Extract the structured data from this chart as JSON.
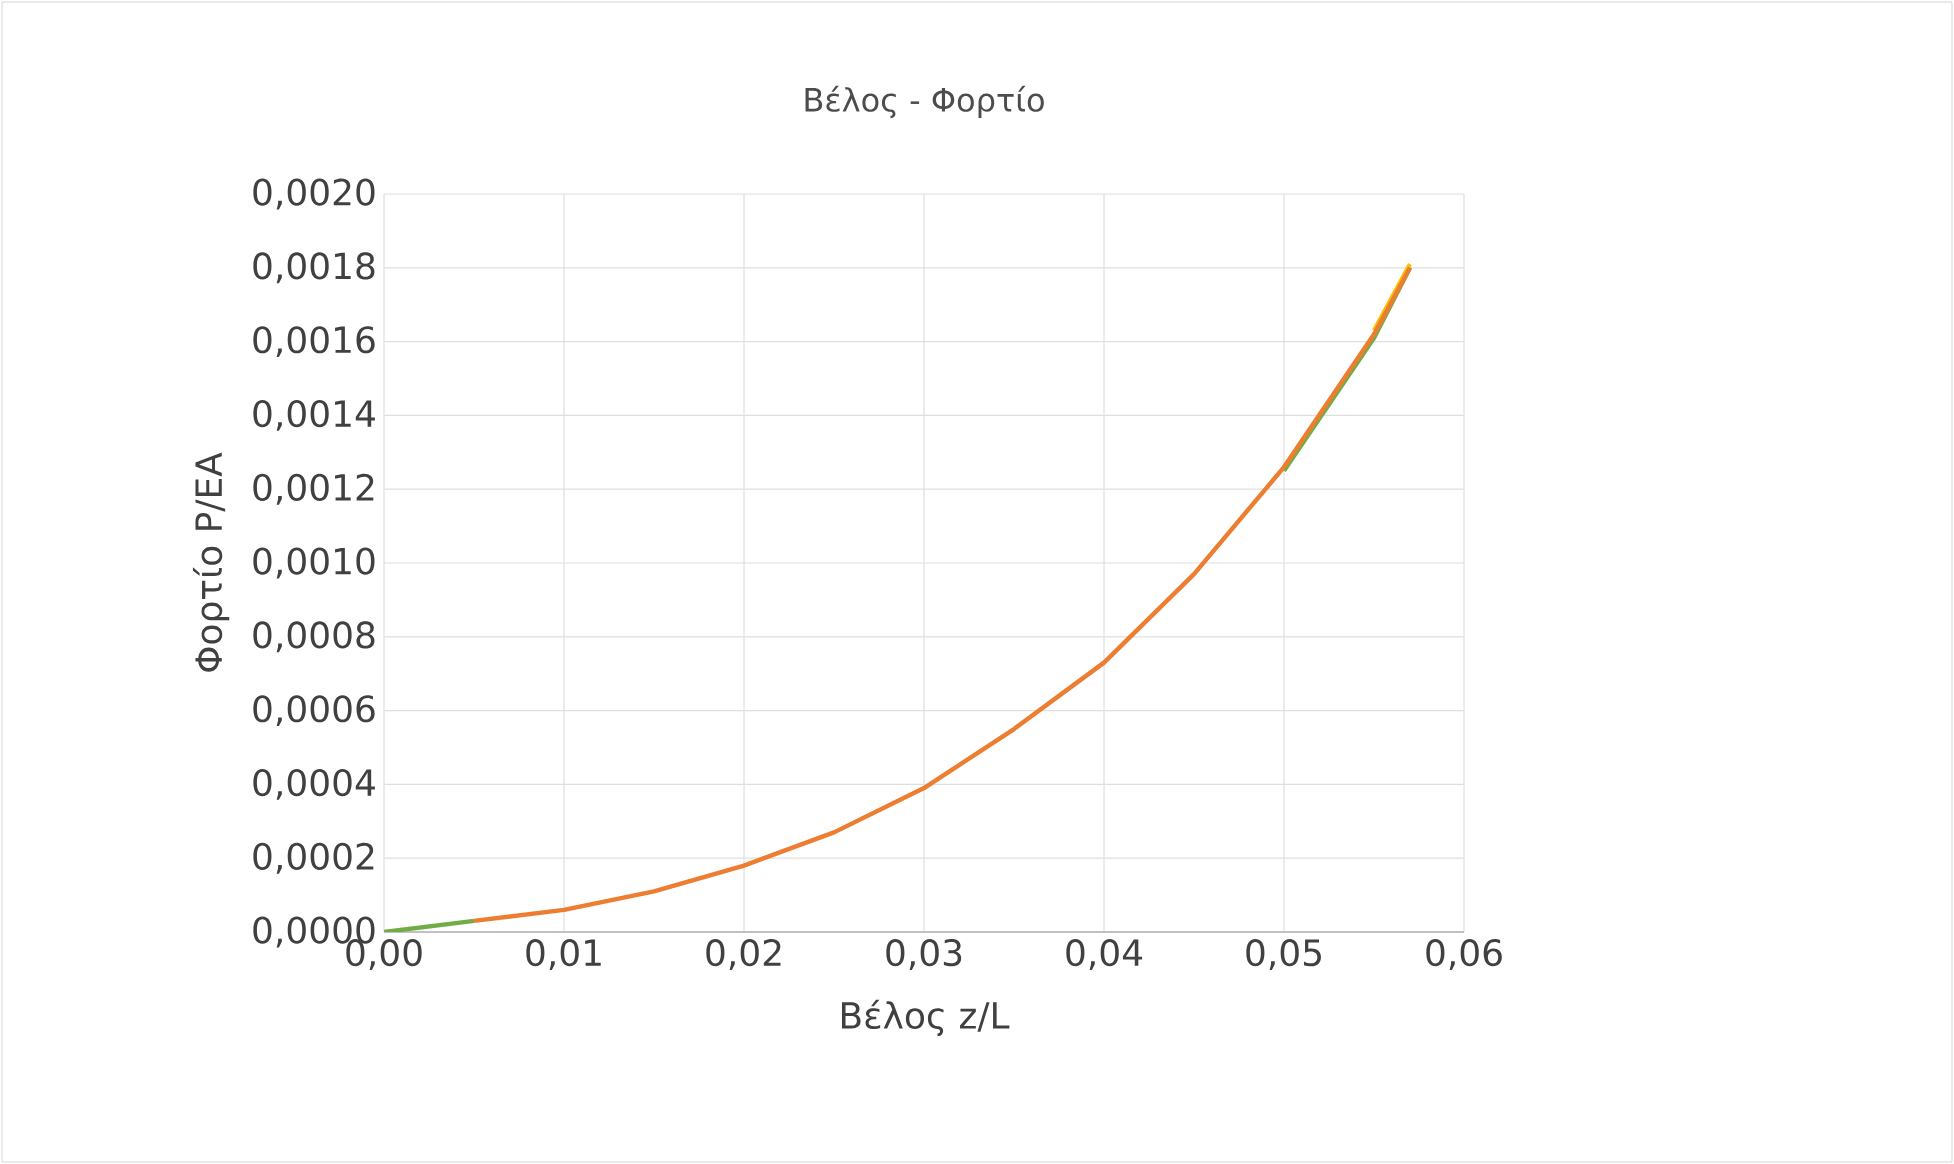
{
  "chart_data": {
    "type": "line",
    "title": "Βέλος - Φορτίο",
    "xlabel": "Βέλος z/L",
    "ylabel": "Φορτίο P/EA",
    "x": [
      0,
      0.005,
      0.01,
      0.015,
      0.02,
      0.025,
      0.03,
      0.035,
      0.04,
      0.045,
      0.05,
      0.055,
      0.057
    ],
    "series": [
      {
        "color": "#ffc000",
        "values": [
          null,
          null,
          null,
          null,
          null,
          null,
          null,
          null,
          null,
          null,
          null,
          0.00163,
          0.00181
        ]
      },
      {
        "color": "#70ad47",
        "values": [
          0,
          3e-05,
          null,
          null,
          null,
          null,
          null,
          null,
          null,
          null,
          0.00125,
          0.00161,
          0.0018
        ]
      },
      {
        "color": "#ed7d31",
        "values": [
          null,
          3e-05,
          6e-05,
          0.00011,
          0.00018,
          0.00027,
          0.00039,
          0.00055,
          0.00073,
          0.00097,
          0.00126,
          0.00162,
          0.0018
        ]
      }
    ],
    "xlim": [
      0,
      0.06
    ],
    "ylim": [
      0,
      0.002
    ],
    "xticks": [
      {
        "value": 0,
        "label": "0,00"
      },
      {
        "value": 0.01,
        "label": "0,01"
      },
      {
        "value": 0.02,
        "label": "0,02"
      },
      {
        "value": 0.03,
        "label": "0,03"
      },
      {
        "value": 0.04,
        "label": "0,04"
      },
      {
        "value": 0.05,
        "label": "0,05"
      },
      {
        "value": 0.06,
        "label": "0,06"
      }
    ],
    "yticks": [
      {
        "value": 0,
        "label": "0,0000"
      },
      {
        "value": 0.0002,
        "label": "0,0002"
      },
      {
        "value": 0.0004,
        "label": "0,0004"
      },
      {
        "value": 0.0006,
        "label": "0,0006"
      },
      {
        "value": 0.0008,
        "label": "0,0008"
      },
      {
        "value": 0.001,
        "label": "0,0010"
      },
      {
        "value": 0.0012,
        "label": "0,0012"
      },
      {
        "value": 0.0014,
        "label": "0,0014"
      },
      {
        "value": 0.0016,
        "label": "0,0016"
      },
      {
        "value": 0.0018,
        "label": "0,0018"
      },
      {
        "value": 0.002,
        "label": "0,0020"
      }
    ],
    "grid": true,
    "marker": "none",
    "line_style": "solid"
  }
}
